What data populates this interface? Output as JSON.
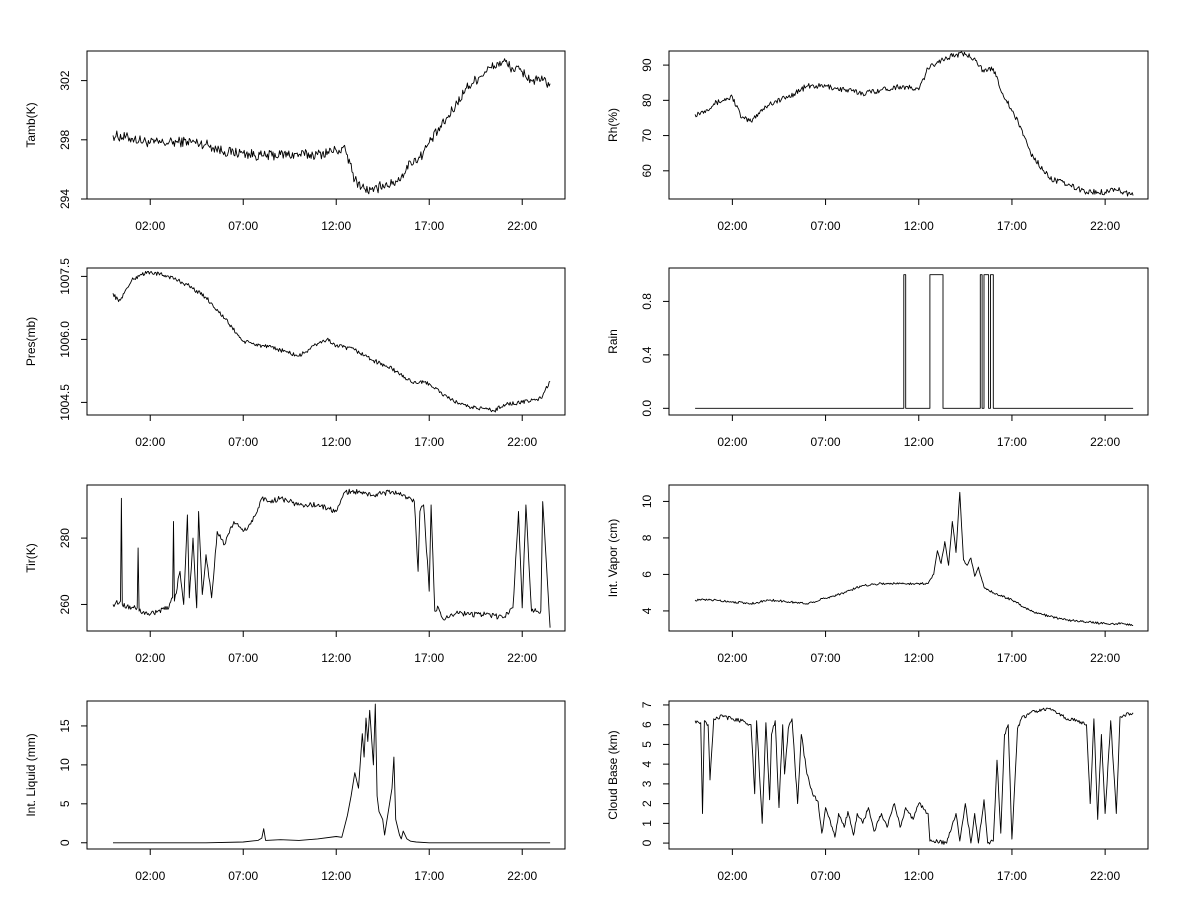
{
  "chart_data": [
    {
      "type": "line",
      "ylabel": "Tamb(K)",
      "xlim": [
        -1.4,
        24.3
      ],
      "xticks": [
        2,
        7,
        12,
        17,
        22
      ],
      "xtick_labels": [
        "02:00",
        "07:00",
        "12:00",
        "17:00",
        "22:00"
      ],
      "ylim": [
        294,
        304
      ],
      "yticks": [
        294,
        298,
        302
      ],
      "noise": 0.35,
      "x": [
        0,
        1,
        2,
        3,
        4,
        5,
        6,
        7,
        8,
        9,
        10,
        11,
        12,
        12.5,
        13,
        13.5,
        14,
        14.5,
        15,
        15.5,
        16,
        16.5,
        17,
        18,
        19,
        20,
        20.5,
        21,
        21.5,
        22,
        22.5,
        23,
        23.5
      ],
      "y": [
        298.3,
        298.1,
        297.8,
        297.8,
        297.9,
        297.7,
        297.2,
        297.1,
        296.9,
        297.0,
        297.0,
        297.0,
        297.3,
        297.3,
        295.3,
        294.7,
        294.5,
        295.0,
        295.0,
        295.5,
        296.5,
        296.8,
        297.8,
        299.5,
        301.5,
        302.6,
        303.0,
        303.3,
        302.8,
        302.6,
        302.0,
        302.0,
        301.8
      ]
    },
    {
      "type": "line",
      "ylabel": "Rh(%)",
      "xlim": [
        -1.4,
        24.3
      ],
      "xticks": [
        2,
        7,
        12,
        17,
        22
      ],
      "xtick_labels": [
        "02:00",
        "07:00",
        "12:00",
        "17:00",
        "22:00"
      ],
      "ylim": [
        52,
        94
      ],
      "yticks": [
        60,
        70,
        80,
        90
      ],
      "noise": 0.8,
      "x": [
        0,
        0.5,
        1,
        1.5,
        2,
        2.5,
        3,
        3.5,
        4,
        5,
        6,
        7,
        8,
        9,
        10,
        11,
        12,
        12.5,
        13,
        13.5,
        14,
        14.5,
        15,
        15.5,
        16,
        16.5,
        17,
        17.5,
        18,
        19,
        20,
        21,
        22,
        22.5,
        23,
        23.5
      ],
      "y": [
        76,
        77,
        79,
        80,
        81,
        75,
        74,
        77,
        79,
        81,
        84,
        84,
        83,
        82,
        83,
        84,
        83,
        89,
        91,
        92,
        93,
        93,
        92,
        88,
        89,
        82,
        77,
        72,
        65,
        58,
        56,
        54,
        54,
        55,
        54,
        53
      ]
    },
    {
      "type": "line",
      "ylabel": "Pres(mb)",
      "xlim": [
        -1.4,
        24.3
      ],
      "xticks": [
        2,
        7,
        12,
        17,
        22
      ],
      "xtick_labels": [
        "02:00",
        "07:00",
        "12:00",
        "17:00",
        "22:00"
      ],
      "ylim": [
        1004.2,
        1007.7
      ],
      "yticks": [
        1004.5,
        1006.0,
        1007.5
      ],
      "ytick_labels": [
        "1004.5",
        "1006.0",
        "1007.5"
      ],
      "noise": 0.05,
      "x": [
        0,
        0.3,
        0.6,
        1,
        1.5,
        2,
        3,
        4,
        5,
        6,
        7,
        8,
        9,
        10,
        11,
        11.5,
        12,
        13,
        14,
        15,
        16,
        17,
        18,
        19,
        20,
        20.5,
        21,
        22,
        23,
        23.5
      ],
      "y": [
        1007.1,
        1006.9,
        1007.1,
        1007.4,
        1007.55,
        1007.6,
        1007.5,
        1007.3,
        1007.0,
        1006.5,
        1005.95,
        1005.85,
        1005.75,
        1005.6,
        1005.9,
        1006.0,
        1005.85,
        1005.75,
        1005.5,
        1005.3,
        1005.0,
        1004.95,
        1004.6,
        1004.4,
        1004.35,
        1004.3,
        1004.45,
        1004.5,
        1004.6,
        1005.0
      ]
    },
    {
      "type": "line",
      "ylabel": "Rain",
      "xlim": [
        -1.4,
        24.3
      ],
      "xticks": [
        2,
        7,
        12,
        17,
        22
      ],
      "xtick_labels": [
        "02:00",
        "07:00",
        "12:00",
        "17:00",
        "22:00"
      ],
      "ylim": [
        -0.05,
        1.05
      ],
      "yticks": [
        0.0,
        0.4,
        0.8
      ],
      "ytick_labels": [
        "0.0",
        "0.4",
        "0.8"
      ],
      "noise": 0,
      "x": [
        0,
        11.2,
        11.2,
        11.3,
        11.3,
        12.6,
        12.6,
        13.3,
        13.3,
        15.3,
        15.3,
        15.4,
        15.4,
        15.5,
        15.5,
        15.75,
        15.75,
        15.85,
        15.85,
        16.0,
        16.0,
        16.2,
        16.2,
        23.5
      ],
      "y": [
        0,
        0,
        1,
        1,
        0,
        0,
        1,
        1,
        0,
        0,
        1,
        1,
        0,
        0,
        1,
        1,
        0,
        0,
        1,
        1,
        0,
        0,
        0,
        0
      ]
    },
    {
      "type": "line",
      "ylabel": "Tir(K)",
      "xlim": [
        -1.4,
        24.3
      ],
      "xticks": [
        2,
        7,
        12,
        17,
        22
      ],
      "xtick_labels": [
        "02:00",
        "07:00",
        "12:00",
        "17:00",
        "22:00"
      ],
      "ylim": [
        252,
        296
      ],
      "yticks": [
        260,
        280
      ],
      "noise": 0.8,
      "x": [
        0,
        0.4,
        0.45,
        0.5,
        1,
        1.3,
        1.35,
        1.4,
        2,
        3,
        3.2,
        3.25,
        3.3,
        3.6,
        3.8,
        4.0,
        4.1,
        4.3,
        4.5,
        4.6,
        4.8,
        5.0,
        5.3,
        5.6,
        6.0,
        6.5,
        7.0,
        7.5,
        8,
        8.4,
        9,
        10,
        11,
        12,
        12.5,
        13,
        14,
        15,
        15.5,
        16,
        16.2,
        16.4,
        16.5,
        16.7,
        17,
        17.1,
        17.3,
        17.5,
        17.7,
        18,
        18.5,
        19,
        20,
        21,
        21.5,
        21.8,
        22,
        22.2,
        22.5,
        22.8,
        23,
        23.1,
        23.5
      ],
      "y": [
        260,
        261,
        292,
        260,
        259,
        259,
        277,
        258,
        257,
        259,
        262,
        285,
        261,
        270,
        260,
        287,
        262,
        280,
        259,
        288,
        263,
        275,
        262,
        282,
        278,
        285,
        282,
        285,
        292,
        291,
        292,
        290,
        290,
        288,
        294,
        294,
        293,
        294,
        293,
        292,
        291,
        270,
        288,
        290,
        264,
        290,
        258,
        259,
        256,
        256,
        258,
        257,
        257,
        256,
        259,
        288,
        259,
        290,
        258,
        258,
        258,
        291,
        253
      ]
    },
    {
      "type": "line",
      "ylabel": "Int. Vapor (cm)",
      "xlim": [
        -1.4,
        24.3
      ],
      "xticks": [
        2,
        7,
        12,
        17,
        22
      ],
      "xtick_labels": [
        "02:00",
        "07:00",
        "12:00",
        "17:00",
        "22:00"
      ],
      "ylim": [
        2.9,
        10.9
      ],
      "yticks": [
        4,
        6,
        8,
        10
      ],
      "noise": 0.06,
      "x": [
        0,
        1,
        2,
        3,
        4,
        5,
        6,
        7,
        8,
        9,
        10,
        11,
        12,
        12.5,
        12.8,
        13.0,
        13.2,
        13.4,
        13.6,
        13.8,
        14.0,
        14.2,
        14.4,
        14.6,
        14.8,
        15.0,
        15.2,
        15.5,
        16,
        17,
        18,
        19,
        20,
        21,
        22,
        23,
        23.5
      ],
      "y": [
        4.6,
        4.6,
        4.5,
        4.4,
        4.6,
        4.5,
        4.4,
        4.7,
        5.0,
        5.4,
        5.5,
        5.5,
        5.5,
        5.5,
        6.0,
        7.3,
        6.6,
        7.8,
        6.5,
        8.9,
        7.2,
        10.5,
        6.8,
        6.5,
        6.9,
        5.9,
        6.4,
        5.3,
        5.0,
        4.6,
        4.0,
        3.7,
        3.5,
        3.4,
        3.3,
        3.3,
        3.2
      ]
    },
    {
      "type": "line",
      "ylabel": "Int. Liquid (mm)",
      "xlim": [
        -1.4,
        24.3
      ],
      "xticks": [
        2,
        7,
        12,
        17,
        22
      ],
      "xtick_labels": [
        "02:00",
        "07:00",
        "12:00",
        "17:00",
        "22:00"
      ],
      "ylim": [
        -0.8,
        18.2
      ],
      "yticks": [
        0,
        5,
        10,
        15
      ],
      "noise": 0,
      "x": [
        0,
        5,
        7,
        7.8,
        8.0,
        8.1,
        8.2,
        9,
        10,
        11,
        12,
        12.3,
        12.6,
        12.8,
        13.0,
        13.2,
        13.4,
        13.5,
        13.6,
        13.7,
        13.8,
        14.0,
        14.1,
        14.2,
        14.3,
        14.5,
        14.6,
        14.8,
        15.0,
        15.1,
        15.2,
        15.4,
        15.5,
        15.6,
        15.8,
        16,
        16.3,
        17,
        20,
        23.5
      ],
      "y": [
        0,
        0,
        0.1,
        0.3,
        0.6,
        1.8,
        0.3,
        0.4,
        0.3,
        0.5,
        0.8,
        0.7,
        3.5,
        6,
        9,
        7,
        14,
        11,
        16,
        13,
        17,
        10,
        17.8,
        6,
        4,
        3,
        1,
        4,
        7,
        11,
        3,
        1,
        0.5,
        1.5,
        0.5,
        0.2,
        0.1,
        0,
        0,
        0
      ]
    },
    {
      "type": "line",
      "ylabel": "Cloud Base (km)",
      "xlim": [
        -1.4,
        24.3
      ],
      "xticks": [
        2,
        7,
        12,
        17,
        22
      ],
      "xtick_labels": [
        "02:00",
        "07:00",
        "12:00",
        "17:00",
        "22:00"
      ],
      "ylim": [
        -0.3,
        7.2
      ],
      "yticks": [
        0,
        1,
        2,
        3,
        4,
        5,
        6,
        7
      ],
      "noise": 0.1,
      "x": [
        0,
        0.3,
        0.4,
        0.5,
        0.7,
        0.8,
        1.0,
        1.3,
        1.4,
        1.5,
        2,
        2.5,
        3,
        3.2,
        3.3,
        3.6,
        3.8,
        4.0,
        4.1,
        4.3,
        4.5,
        4.7,
        4.8,
        5.0,
        5.2,
        5.5,
        5.7,
        6.0,
        6.3,
        6.6,
        6.8,
        7.0,
        7.5,
        7.7,
        8.0,
        8.2,
        8.5,
        8.7,
        9.0,
        9.3,
        9.6,
        10,
        10.3,
        10.7,
        11,
        11.3,
        11.7,
        12,
        12.5,
        12.6,
        12.8,
        13.0,
        13.5,
        14,
        14.2,
        14.5,
        14.8,
        15.0,
        15.2,
        15.5,
        15.7,
        16.0,
        16.2,
        16.4,
        16.6,
        16.8,
        17.0,
        17.3,
        17.5,
        18,
        19,
        20,
        20.5,
        21,
        21.2,
        21.4,
        21.6,
        21.8,
        22,
        22.3,
        22.6,
        22.8,
        23,
        23.5
      ],
      "y": [
        6.2,
        6.1,
        1.5,
        6.2,
        6.0,
        3.2,
        6.3,
        6.3,
        6.5,
        6.4,
        6.3,
        6.2,
        6.0,
        2.5,
        6.2,
        1.0,
        6.1,
        2.2,
        5.5,
        6.2,
        1.8,
        6.0,
        3.5,
        5.8,
        6.3,
        2.0,
        5.5,
        3.5,
        2.5,
        2.1,
        0.5,
        1.8,
        0.3,
        1.5,
        0.8,
        1.6,
        0.4,
        1.5,
        1.0,
        1.8,
        0.6,
        1.5,
        0.8,
        2.0,
        0.8,
        1.8,
        1.2,
        2.0,
        1.5,
        0.1,
        0.1,
        0.1,
        0.0,
        1.5,
        0.1,
        2.0,
        0.0,
        1.5,
        0.0,
        2.2,
        0.0,
        0.1,
        4.2,
        0.5,
        5.5,
        6.0,
        0.2,
        5.8,
        6.3,
        6.6,
        6.8,
        6.3,
        6.2,
        6.0,
        2.0,
        6.3,
        1.2,
        5.5,
        1.5,
        6.2,
        1.5,
        6.4,
        6.5,
        6.6
      ]
    }
  ]
}
